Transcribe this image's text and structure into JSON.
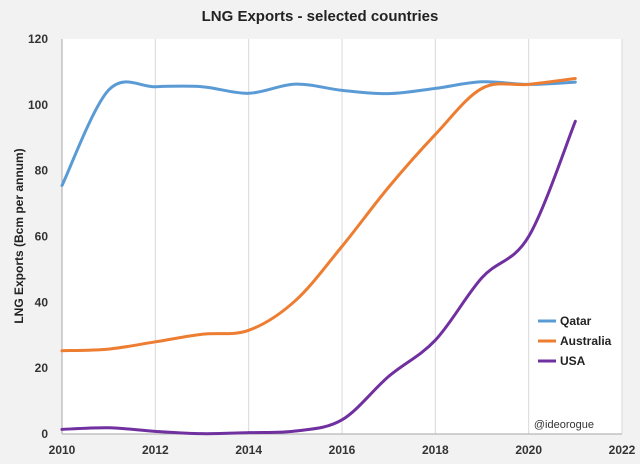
{
  "chart_data": {
    "type": "line",
    "title": "LNG Exports - selected countries",
    "xlabel": "",
    "ylabel": "LNG Exports (Bcm per annum)",
    "xlim": [
      2010,
      2022
    ],
    "ylim": [
      0,
      120
    ],
    "xticks": [
      2010,
      2012,
      2014,
      2016,
      2018,
      2020,
      2022
    ],
    "yticks": [
      0,
      20,
      40,
      60,
      80,
      100,
      120
    ],
    "grid": "vertical",
    "legend_position": "right",
    "x": [
      2010,
      2011,
      2012,
      2013,
      2014,
      2015,
      2016,
      2017,
      2018,
      2019,
      2020,
      2021
    ],
    "series": [
      {
        "name": "Qatar",
        "color": "#5b9bd5",
        "values": [
          75.5,
          104.5,
          105.5,
          105.5,
          103.5,
          106.3,
          104.4,
          103.4,
          105,
          107,
          106.2,
          106.9
        ]
      },
      {
        "name": "Australia",
        "color": "#ed7d31",
        "values": [
          25.3,
          25.8,
          28,
          30.3,
          31.5,
          40.5,
          57,
          75,
          91,
          105,
          106.2,
          108
        ]
      },
      {
        "name": "USA",
        "color": "#7030a0",
        "values": [
          1.4,
          1.9,
          0.8,
          0.1,
          0.4,
          0.9,
          4.3,
          17.5,
          28.5,
          47.5,
          60,
          95
        ]
      }
    ],
    "annotation": "@ideorogue"
  }
}
